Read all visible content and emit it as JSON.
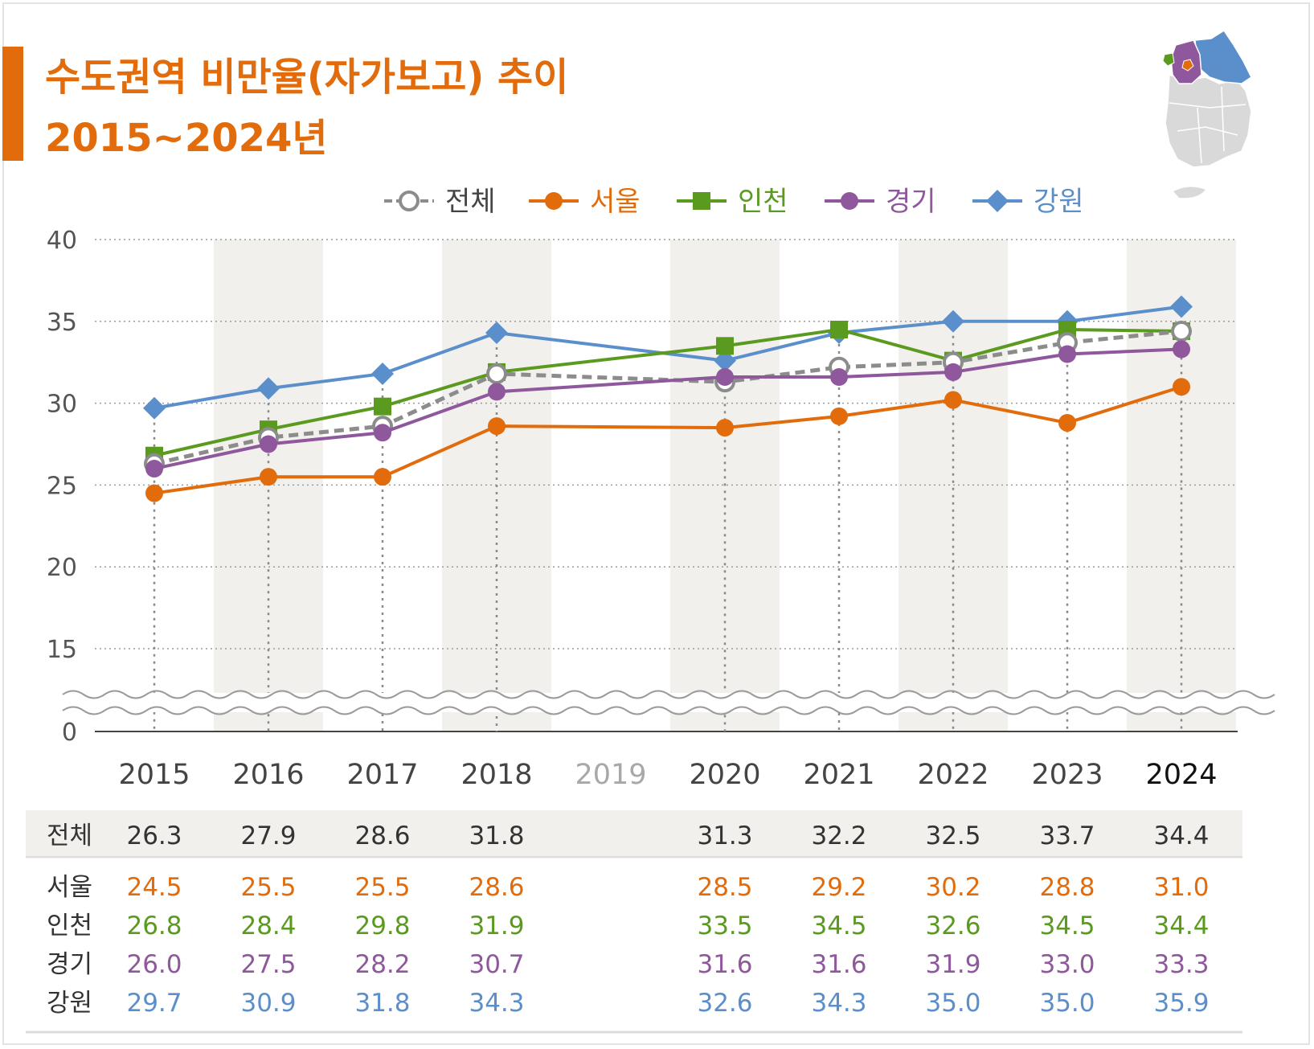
{
  "title": {
    "line1": "수도권역 비만율(자가보고) 추이",
    "line2": "2015~2024년"
  },
  "chart_data": {
    "type": "line",
    "title": "수도권역 비만율(자가보고) 추이 2015~2024년",
    "categories": [
      "2015",
      "2016",
      "2017",
      "2018",
      "2019",
      "2020",
      "2021",
      "2022",
      "2023",
      "2024"
    ],
    "y_ticks": [
      "40",
      "35",
      "30",
      "25",
      "20",
      "15",
      "0"
    ],
    "ylim": [
      0,
      40
    ],
    "axis_break": "between 0 and 15",
    "legend_position": "top",
    "series": [
      {
        "name": "전체",
        "color": "#8c8c8c",
        "marker": "open-circle",
        "dashed": true,
        "values": [
          26.3,
          27.9,
          28.6,
          31.8,
          null,
          31.3,
          32.2,
          32.5,
          33.7,
          34.4
        ]
      },
      {
        "name": "서울",
        "color": "#e26c0b",
        "marker": "circle",
        "dashed": false,
        "values": [
          24.5,
          25.5,
          25.5,
          28.6,
          null,
          28.5,
          29.2,
          30.2,
          28.8,
          31.0
        ]
      },
      {
        "name": "인천",
        "color": "#5a9a1f",
        "marker": "square",
        "dashed": false,
        "values": [
          26.8,
          28.4,
          29.8,
          31.9,
          null,
          33.5,
          34.5,
          32.6,
          34.5,
          34.4
        ]
      },
      {
        "name": "경기",
        "color": "#8f579c",
        "marker": "circle",
        "dashed": false,
        "values": [
          26.0,
          27.5,
          28.2,
          30.7,
          null,
          31.6,
          31.6,
          31.9,
          33.0,
          33.3
        ]
      },
      {
        "name": "강원",
        "color": "#5b8fcb",
        "marker": "diamond",
        "dashed": false,
        "values": [
          29.7,
          30.9,
          31.8,
          34.3,
          null,
          32.6,
          34.3,
          35.0,
          35.0,
          35.9
        ]
      }
    ],
    "table": {
      "rows": [
        {
          "label": "전체",
          "color": "#333333",
          "cells": [
            "26.3",
            "27.9",
            "28.6",
            "31.8",
            "",
            "31.3",
            "32.2",
            "32.5",
            "33.7",
            "34.4"
          ]
        },
        {
          "label": "서울",
          "color": "#e26c0b",
          "cells": [
            "24.5",
            "25.5",
            "25.5",
            "28.6",
            "",
            "28.5",
            "29.2",
            "30.2",
            "28.8",
            "31.0"
          ]
        },
        {
          "label": "인천",
          "color": "#5a9a1f",
          "cells": [
            "26.8",
            "28.4",
            "29.8",
            "31.9",
            "",
            "33.5",
            "34.5",
            "32.6",
            "34.5",
            "34.4"
          ]
        },
        {
          "label": "경기",
          "color": "#8f579c",
          "cells": [
            "26.0",
            "27.5",
            "28.2",
            "30.7",
            "",
            "31.6",
            "31.6",
            "31.9",
            "33.0",
            "33.3"
          ]
        },
        {
          "label": "강원",
          "color": "#5b8fcb",
          "cells": [
            "29.7",
            "30.9",
            "31.8",
            "34.3",
            "",
            "32.6",
            "34.3",
            "35.0",
            "35.0",
            "35.9"
          ]
        }
      ]
    }
  },
  "colors": {
    "accent": "#e26c0b",
    "band": "#f1f0ec",
    "grid": "#9a9a9a",
    "axis": "#444444",
    "muted_year": "#a8a8a8",
    "map_gray": "#d9d9d9",
    "map_blue": "#5b8fcb",
    "map_purple": "#8f579c",
    "map_orange": "#e26c0b",
    "map_green": "#5a9a1f"
  }
}
